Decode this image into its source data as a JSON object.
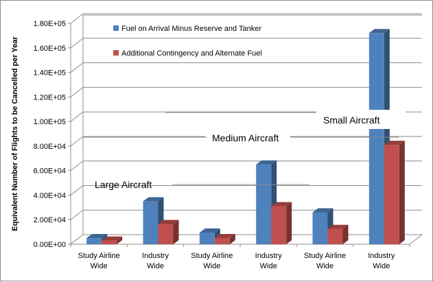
{
  "chart_data": {
    "type": "bar",
    "ylabel": "Equivalent Number of Flights to be Cancelled per Year",
    "ylim": [
      0,
      180000
    ],
    "yticks": [
      "0.00E+00",
      "2.00E+04",
      "4.00E+04",
      "6.00E+04",
      "8.00E+04",
      "1.00E+05",
      "1.20E+05",
      "1.40E+05",
      "1.60E+05",
      "1.80E+05"
    ],
    "categories": [
      [
        "Study Airline",
        "Wide"
      ],
      [
        "Industry",
        "Wide"
      ],
      [
        "Study Airline",
        "Wide"
      ],
      [
        "Industry",
        "Wide"
      ],
      [
        "Study Airline",
        "Wide"
      ],
      [
        "Industry",
        "Wide"
      ]
    ],
    "groups": [
      "Large Aircraft",
      "Medium Aircraft",
      "Small Aircraft"
    ],
    "series": [
      {
        "name": "Fuel on Arrival Minus Reserve and Tanker",
        "color": "#4f81bd",
        "values": [
          5000,
          35000,
          9500,
          65000,
          26000,
          172000
        ]
      },
      {
        "name": "Additional Contingency and Alternate Fuel",
        "color": "#c0504d",
        "values": [
          3000,
          16500,
          5000,
          31000,
          12500,
          81000
        ]
      }
    ],
    "legend_position": "top-left",
    "grid": true
  }
}
